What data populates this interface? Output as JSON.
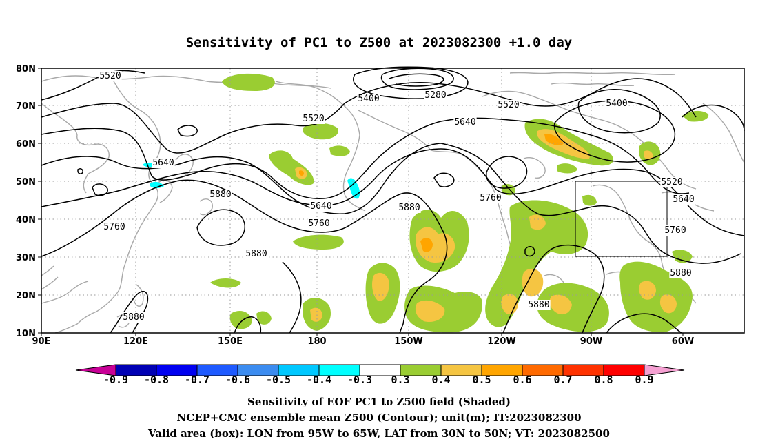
{
  "title": "Sensitivity of PC1 to Z500 at 2023082300 +1.0 day",
  "map": {
    "lon_range": [
      "90E",
      "40W"
    ],
    "lat_range": [
      "10N",
      "80N"
    ],
    "lon_ticks": [
      "90E",
      "120E",
      "150E",
      "180",
      "150W",
      "120W",
      "90W",
      "60W"
    ],
    "lat_ticks": [
      "10N",
      "20N",
      "30N",
      "40N",
      "50N",
      "60N",
      "70N",
      "80N"
    ],
    "graticule": "dotted",
    "coastline_color": "#a8a8a8",
    "contour_color": "#000000"
  },
  "contour_labels": [
    {
      "id": "c5520a",
      "text": "5520"
    },
    {
      "id": "c5400a",
      "text": "5400"
    },
    {
      "id": "c5280",
      "text": "5280"
    },
    {
      "id": "c5520b",
      "text": "5520"
    },
    {
      "id": "c5520c",
      "text": "5520"
    },
    {
      "id": "c5400b",
      "text": "5400"
    },
    {
      "id": "c5640a",
      "text": "5640"
    },
    {
      "id": "c5640b",
      "text": "5640"
    },
    {
      "id": "c5880a",
      "text": "5880"
    },
    {
      "id": "c5640c",
      "text": "5640"
    },
    {
      "id": "c5760a",
      "text": "5760"
    },
    {
      "id": "c5880b",
      "text": "5880"
    },
    {
      "id": "c5760b",
      "text": "5760"
    },
    {
      "id": "c5880c",
      "text": "5880"
    },
    {
      "id": "c5520d",
      "text": "5520"
    },
    {
      "id": "c5640d",
      "text": "5640"
    },
    {
      "id": "c5760c",
      "text": "5760"
    },
    {
      "id": "c5880d",
      "text": "5880"
    },
    {
      "id": "c5880e",
      "text": "5880"
    },
    {
      "id": "c5880f",
      "text": "5880"
    },
    {
      "id": "c5760d",
      "text": "5760"
    }
  ],
  "valid_box": {
    "lon": [
      "95W",
      "65W"
    ],
    "lat": [
      "30N",
      "50N"
    ]
  },
  "colorbar": {
    "labels": [
      "-0.9",
      "-0.8",
      "-0.7",
      "-0.6",
      "-0.5",
      "-0.4",
      "-0.3",
      "0.3",
      "0.4",
      "0.5",
      "0.6",
      "0.7",
      "0.8",
      "0.9"
    ],
    "colors": [
      "#0000b4",
      "#0000f0",
      "#1e5aff",
      "#3c8cf0",
      "#00c8ff",
      "#00ffff",
      "#ffffff",
      "#9acd32",
      "#f5c542",
      "#ffa500",
      "#ff6a00",
      "#ff3200",
      "#ff0000"
    ],
    "low_color": "#c80096",
    "high_color": "#f5a0d2"
  },
  "footer": {
    "line1": "Sensitivity of EOF PC1 to Z500 field (Shaded)",
    "line2": "NCEP+CMC ensemble mean Z500 (Contour); unit(m); IT:2023082300",
    "line3": "Valid area (box): LON from 95W to 65W, LAT from 30N to 50N; VT: 2023082500"
  }
}
